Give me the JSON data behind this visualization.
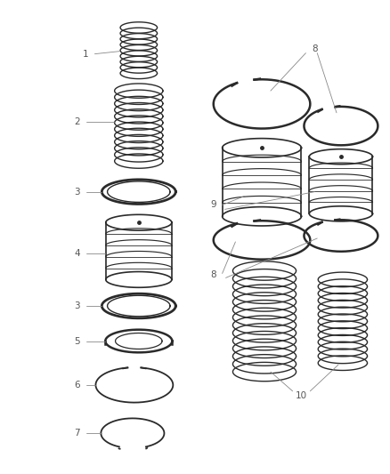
{
  "background_color": "#ffffff",
  "line_color": "#2a2a2a",
  "label_color": "#555555",
  "leader_color": "#888888",
  "fig_width": 4.39,
  "fig_height": 5.33,
  "dpi": 100
}
